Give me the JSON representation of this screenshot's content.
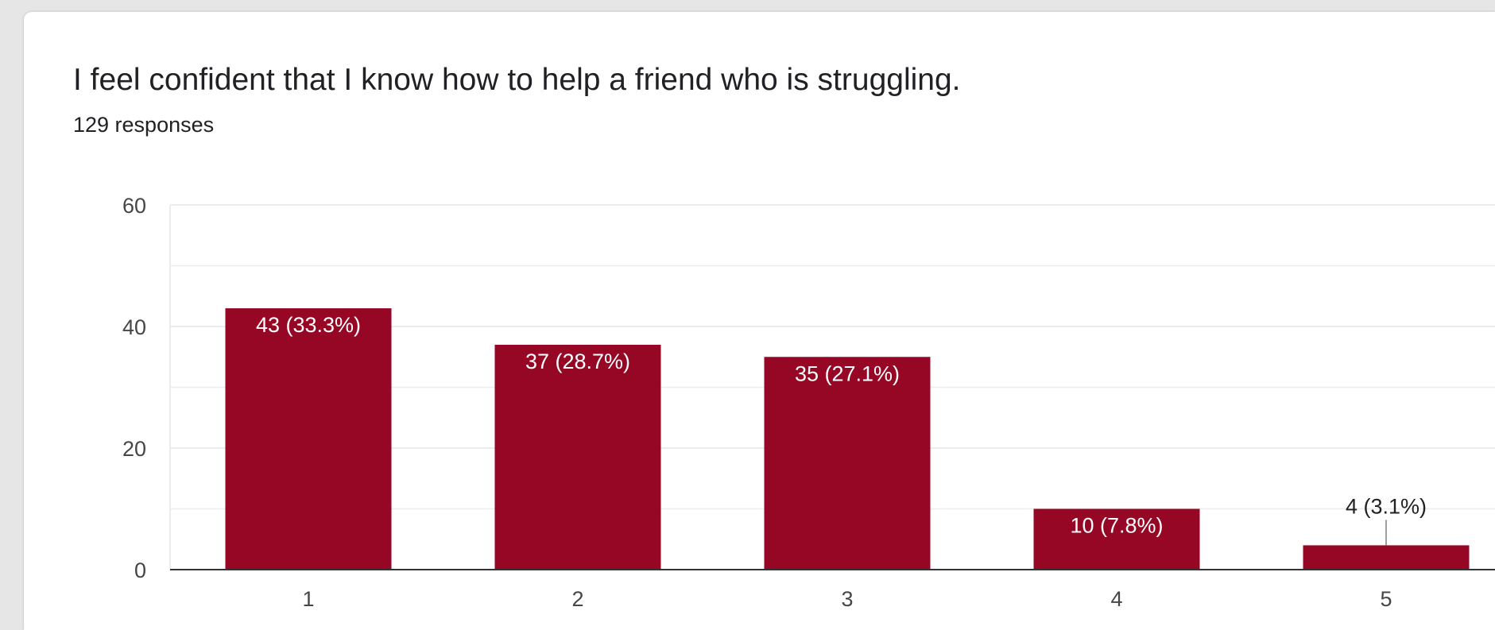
{
  "card": {
    "title": "I feel confident that I know how to help a friend who is struggling.",
    "responses": "129 responses"
  },
  "colors": {
    "bar": "#950724",
    "grid": "#ececec",
    "baseline": "#333333"
  },
  "chart_data": {
    "type": "bar",
    "title": "I feel confident that I know how to help a friend who is struggling.",
    "subtitle": "129 responses",
    "categories": [
      "1",
      "2",
      "3",
      "4",
      "5"
    ],
    "values": [
      43,
      37,
      35,
      10,
      4
    ],
    "labels": [
      "43 (33.3%)",
      "37 (28.7%)",
      "35 (27.1%)",
      "10 (7.8%)",
      "4 (3.1%)"
    ],
    "xlabel": "",
    "ylabel": "",
    "ylim": [
      0,
      60
    ],
    "yticks": [
      0,
      20,
      40,
      60
    ],
    "grid": true
  }
}
